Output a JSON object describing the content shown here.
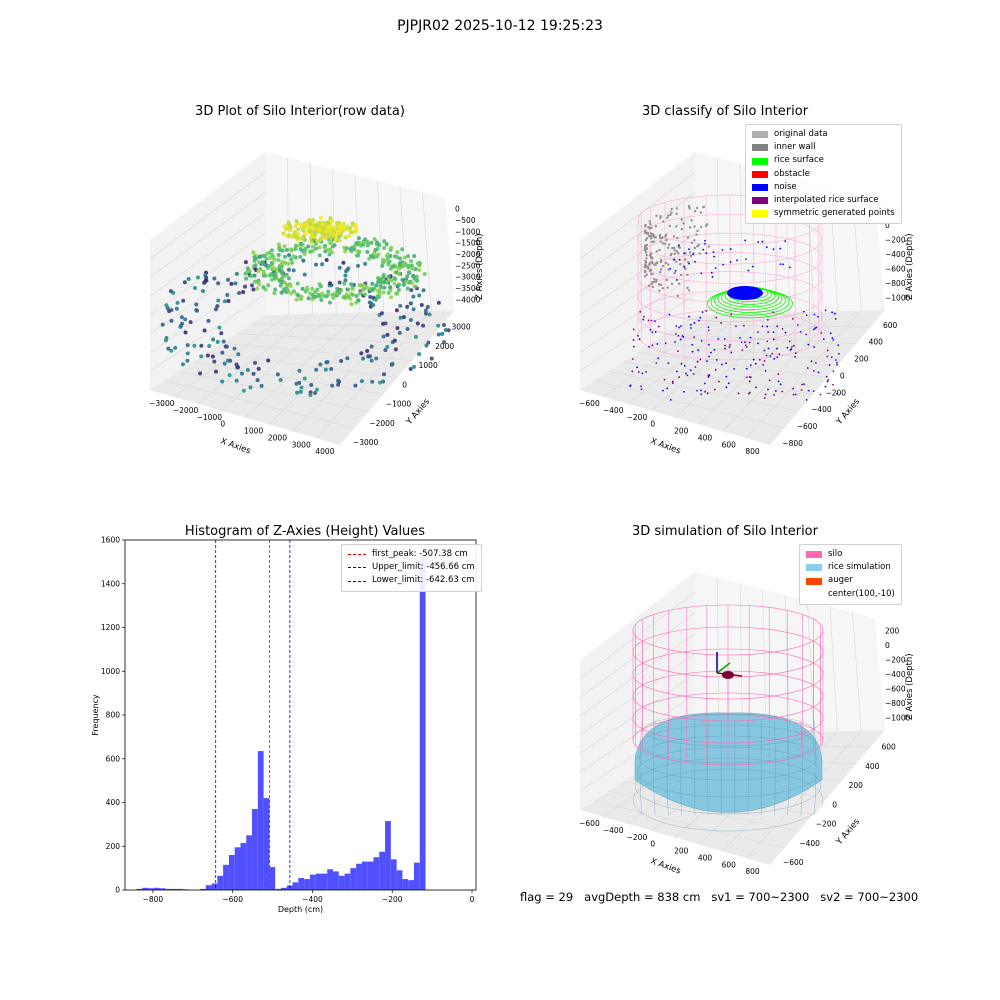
{
  "suptitle": "PJPJR02 2025-10-12 19:25:23",
  "footer": {
    "flag": "flag = 29",
    "avg_depth": "avgDepth = 838 cm",
    "sv1": "sv1 = 700~2300",
    "sv2": "sv2 = 700~2300"
  },
  "colors": {
    "hist_bar": "#5050ff",
    "first_peak": "#ff0000",
    "limits": "#0000cc",
    "silo_mesh": "#ff69b4",
    "rice_sim": "#87c8e0",
    "legend_original": "#b0b0b0",
    "legend_inner_wall": "#808080",
    "legend_rice_surface": "#00ff00",
    "legend_obstacle": "#ff0000",
    "legend_noise": "#0000ff",
    "legend_interpolated": "#800080",
    "legend_symmetric": "#ffff00",
    "legend_silo": "#ff69b4",
    "legend_rice_simulation": "#87ceeb",
    "legend_auger": "#ff4500"
  },
  "chart_data": [
    {
      "type": "scatter",
      "projection": "3d",
      "title": "3D Plot of Silo Interior(row data)",
      "xlabel": "X Axies",
      "ylabel": "Y Axies",
      "zlabel": "Z Axies (Depth)",
      "x_ticks": [
        "−3000",
        "−2000",
        "−1000",
        "0",
        "1000",
        "2000",
        "3000",
        "4000"
      ],
      "y_ticks": [
        "−3000",
        "−2000",
        "−1000",
        "0",
        "1000",
        "2000",
        "3000"
      ],
      "z_ticks": [
        "0",
        "−500",
        "−1000",
        "−1500",
        "−2000",
        "−2500",
        "−3000",
        "−3500",
        "−4000"
      ],
      "colormap": "viridis"
    },
    {
      "type": "scatter",
      "projection": "3d",
      "title": "3D classify of Silo Interior",
      "xlabel": "X Axies",
      "ylabel": "Y Axies",
      "zlabel": "Z Axies (Depth)",
      "x_ticks": [
        "−600",
        "−400",
        "−200",
        "0",
        "200",
        "400",
        "600",
        "800"
      ],
      "y_ticks": [
        "−800",
        "−600",
        "−400",
        "−200",
        "0",
        "200",
        "400",
        "600"
      ],
      "z_ticks": [
        "200",
        "0",
        "−200",
        "−400",
        "−600",
        "−800",
        "−1000"
      ],
      "legend": [
        "original data",
        "inner wall",
        "rice surface",
        "obstacle",
        "noise",
        "interpolated rice surface",
        "symmetric generated points"
      ]
    },
    {
      "type": "bar",
      "title": "Histogram of Z-Axies (Height) Values",
      "xlabel": "Depth (cm)",
      "ylabel": "Frequency",
      "xlim": [
        -870,
        10
      ],
      "ylim": [
        0,
        1600
      ],
      "x_ticks": [
        -800,
        -600,
        -400,
        -200,
        0
      ],
      "x_tick_labels": [
        "−800",
        "−600",
        "−400",
        "−200",
        "0"
      ],
      "y_ticks": [
        0,
        200,
        400,
        600,
        800,
        1000,
        1200,
        1400,
        1600
      ],
      "bin_width": 14.5,
      "bin_start": -856,
      "values": [
        0,
        5,
        10,
        8,
        10,
        8,
        5,
        5,
        5,
        3,
        0,
        0,
        5,
        22,
        30,
        65,
        115,
        160,
        195,
        215,
        250,
        370,
        635,
        420,
        105,
        5,
        10,
        20,
        35,
        55,
        50,
        70,
        75,
        75,
        95,
        85,
        65,
        75,
        100,
        120,
        130,
        130,
        150,
        175,
        315,
        140,
        90,
        50,
        45,
        125,
        1520
      ],
      "vlines": [
        {
          "label": "first_peak: -507.38 cm",
          "x": -507.38,
          "color": "red"
        },
        {
          "label": "Upper_limit: -456.66 cm",
          "x": -456.66,
          "color": "blue"
        },
        {
          "label": "Lower_limit: -642.63 cm",
          "x": -642.63,
          "color": "blue"
        }
      ],
      "legend_position": "top-right"
    },
    {
      "type": "surface",
      "projection": "3d",
      "title": "3D simulation of Silo Interior",
      "xlabel": "X Axies",
      "ylabel": "Y Axies",
      "zlabel": "Z Axies (Depth)",
      "x_ticks": [
        "−600",
        "−400",
        "−200",
        "0",
        "200",
        "400",
        "600",
        "800"
      ],
      "y_ticks": [
        "−600",
        "−400",
        "−200",
        "0",
        "200",
        "400",
        "600"
      ],
      "z_ticks": [
        "200",
        "0",
        "−200",
        "−400",
        "−600",
        "−800",
        "−1000"
      ],
      "legend": [
        "silo",
        "rice simulation",
        "auger",
        "center(100,-10)"
      ]
    }
  ]
}
